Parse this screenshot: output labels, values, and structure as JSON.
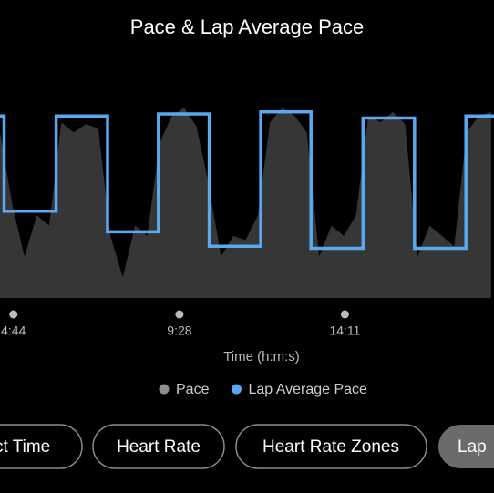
{
  "chart_data": {
    "type": "line",
    "title": "Pace & Lap Average Pace",
    "x_label": "Time (h:m:s)",
    "xlim": [
      261,
      1106
    ],
    "ylim": [
      0,
      100
    ],
    "xticks": [
      {
        "value": 284,
        "label": "4:44"
      },
      {
        "value": 568,
        "label": "9:28"
      },
      {
        "value": 851,
        "label": "14:11"
      }
    ],
    "series": [
      {
        "name": "Pace",
        "color": "#8e8e8e",
        "fill": "#363636",
        "x": [
          261,
          282,
          303,
          324,
          345,
          366,
          387,
          408,
          429,
          450,
          471,
          492,
          513,
          534,
          555,
          576,
          597,
          618,
          639,
          660,
          681,
          702,
          723,
          744,
          765,
          786,
          807,
          828,
          849,
          870,
          891,
          912,
          933,
          954,
          975,
          996,
          1017,
          1038,
          1059,
          1080,
          1101
        ],
        "values": [
          80,
          45,
          20,
          40,
          35,
          85,
          80,
          84,
          82,
          30,
          10,
          35,
          30,
          75,
          88,
          92,
          83,
          55,
          20,
          30,
          28,
          40,
          85,
          92,
          88,
          80,
          20,
          35,
          30,
          40,
          88,
          85,
          90,
          84,
          20,
          35,
          30,
          25,
          80,
          88,
          90
        ]
      },
      {
        "name": "Lap Average Pace",
        "color": "#5aa9f0",
        "x": [
          261,
          268,
          268,
          357,
          357,
          445,
          445,
          532,
          532,
          619,
          619,
          707,
          707,
          793,
          793,
          882,
          882,
          970,
          970,
          1058,
          1058,
          1106
        ],
        "values": [
          88,
          88,
          42,
          42,
          88,
          88,
          32,
          32,
          89,
          89,
          25,
          25,
          90,
          90,
          24,
          24,
          87,
          87,
          24,
          24,
          88,
          88
        ]
      }
    ]
  },
  "buttons": [
    "ct Time",
    "Heart Rate",
    "Heart Rate Zones",
    "Lap"
  ]
}
